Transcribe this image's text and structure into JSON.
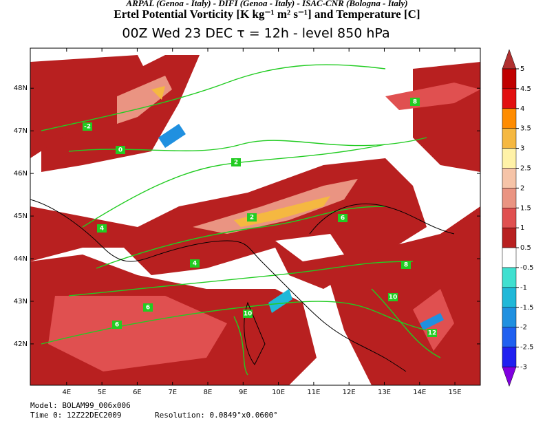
{
  "header": {
    "credits": "ARPAL (Genoa - Italy)  -  DIFI (Genoa - Italy)  -  ISAC-CNR (Bologna - Italy)",
    "title": "Ertel Potential Vorticity [K kg⁻¹ m² s⁻¹] and Temperature [C]",
    "subtitle": "00Z Wed 23 DEC   τ = 12h   -   level 850 hPa"
  },
  "map": {
    "lonlim": [
      2.97,
      15.72
    ],
    "latlim": [
      41.03,
      48.94
    ],
    "lon_ticks": [
      {
        "value": 4,
        "label": "4E"
      },
      {
        "value": 5,
        "label": "5E"
      },
      {
        "value": 6,
        "label": "6E"
      },
      {
        "value": 7,
        "label": "7E"
      },
      {
        "value": 8,
        "label": "8E"
      },
      {
        "value": 9,
        "label": "9E"
      },
      {
        "value": 10,
        "label": "10E"
      },
      {
        "value": 11,
        "label": "11E"
      },
      {
        "value": 12,
        "label": "12E"
      },
      {
        "value": 13,
        "label": "13E"
      },
      {
        "value": 14,
        "label": "14E"
      },
      {
        "value": 15,
        "label": "15E"
      }
    ],
    "lat_ticks": [
      {
        "value": 48,
        "label": "48N"
      },
      {
        "value": 47,
        "label": "47N"
      },
      {
        "value": 46,
        "label": "46N"
      },
      {
        "value": 45,
        "label": "45N"
      },
      {
        "value": 44,
        "label": "44N"
      },
      {
        "value": 43,
        "label": "43N"
      },
      {
        "value": 42,
        "label": "42N"
      }
    ],
    "contour_labels": [
      -2,
      0,
      2,
      4,
      4,
      6,
      8,
      8,
      10,
      10,
      12,
      2,
      6,
      6
    ]
  },
  "colorbar": {
    "levels": [
      5,
      4.5,
      4,
      3.5,
      3,
      2.5,
      2,
      1.5,
      1,
      0.5,
      -0.5,
      -1,
      -1.5,
      -2,
      -2.5,
      -3
    ],
    "colors": [
      "#b03030",
      "#c00000",
      "#e21010",
      "#ff8c00",
      "#f5b841",
      "#fff2a8",
      "#f6c4a8",
      "#ea9482",
      "#e05050",
      "#b82020",
      "#ffffff",
      "#40e0d0",
      "#20b8d8",
      "#2090e0",
      "#2060f0",
      "#2020f0",
      "#8000e0"
    ]
  },
  "footer": {
    "model": "Model: BOLAM99_006x006",
    "time": "Time 0: 12Z22DEC2009",
    "resolution": "Resolution: 0.0849°x0.0600°"
  }
}
